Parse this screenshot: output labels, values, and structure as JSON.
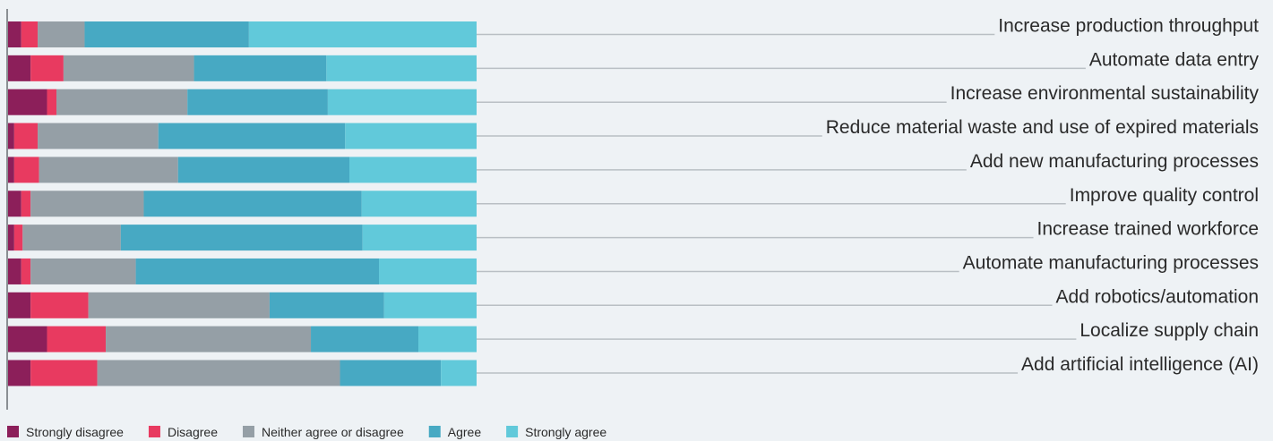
{
  "chart_data": {
    "type": "bar",
    "orientation": "horizontal",
    "stacked": true,
    "normalized": true,
    "categories": [
      "Increase production throughput",
      "Automate data entry",
      "Increase environmental sustainability",
      "Reduce material waste and use of expired materials",
      "Add new manufacturing processes",
      "Improve quality control",
      "Increase trained workforce",
      "Automate manufacturing processes",
      "Add robotics/automation",
      "Localize supply chain",
      "Add artificial intelligence (AI)"
    ],
    "series": [
      {
        "name": "Strongly disagree",
        "color": "#8c1f5a",
        "values": [
          3.0,
          5.0,
          8.5,
          1.5,
          1.5,
          3.0,
          1.5,
          3.0,
          5.0,
          8.5,
          5.0
        ]
      },
      {
        "name": "Disagree",
        "color": "#e83a60",
        "values": [
          3.5,
          7.0,
          2.0,
          5.0,
          5.3,
          2.0,
          1.8,
          2.0,
          12.3,
          12.5,
          14.2
        ]
      },
      {
        "name": "Neither agree or disagree",
        "color": "#959fa6",
        "values": [
          10.0,
          27.8,
          27.9,
          25.7,
          29.6,
          24.1,
          20.9,
          22.4,
          38.6,
          43.7,
          51.7
        ]
      },
      {
        "name": "Agree",
        "color": "#47a9c3",
        "values": [
          35.0,
          28.2,
          29.9,
          39.8,
          36.5,
          46.4,
          51.5,
          51.8,
          24.4,
          22.9,
          21.5
        ]
      },
      {
        "name": "Strongly agree",
        "color": "#61c9da",
        "values": [
          48.5,
          32.0,
          31.7,
          28.0,
          27.1,
          24.5,
          24.3,
          20.8,
          19.7,
          12.4,
          7.6
        ]
      }
    ],
    "xlim": [
      0,
      100
    ],
    "legend_position": "bottom-left",
    "grid": false
  }
}
